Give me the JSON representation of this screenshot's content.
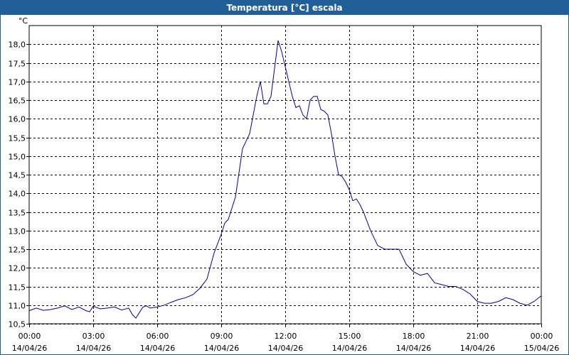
{
  "window": {
    "title": "Temperatura [°C] escala"
  },
  "colors": {
    "titlebar": "#235f97",
    "series": "#0000a0",
    "grid": "#000000"
  },
  "chart_data": {
    "type": "line",
    "title": "Temperatura [°C] escala",
    "ylabel": "°C",
    "xlabel": "",
    "ylim": [
      10.5,
      18.5
    ],
    "yticks": [
      "10,5",
      "11,0",
      "11,5",
      "12,0",
      "12,5",
      "13,0",
      "13,5",
      "14,0",
      "14,5",
      "15,0",
      "15,5",
      "16,0",
      "16,5",
      "17,0",
      "17,5",
      "18,0"
    ],
    "xticks": [
      {
        "time": "00:00",
        "date": "14/04/26"
      },
      {
        "time": "03:00",
        "date": "14/04/26"
      },
      {
        "time": "06:00",
        "date": "14/04/26"
      },
      {
        "time": "09:00",
        "date": "14/04/26"
      },
      {
        "time": "12:00",
        "date": "14/04/26"
      },
      {
        "time": "15:00",
        "date": "14/04/26"
      },
      {
        "time": "18:00",
        "date": "14/04/26"
      },
      {
        "time": "21:00",
        "date": "14/04/26"
      },
      {
        "time": "00:00",
        "date": "15/04/26"
      }
    ],
    "grid": true,
    "series": [
      {
        "x": [
          "00:00",
          "00:20",
          "00:40",
          "01:00",
          "01:20",
          "01:40",
          "02:00",
          "02:20",
          "02:40",
          "02:50",
          "03:00",
          "03:20",
          "03:40",
          "04:00",
          "04:20",
          "04:40",
          "04:50",
          "05:00",
          "05:10",
          "05:20",
          "05:30",
          "05:40",
          "06:00",
          "06:20",
          "06:40",
          "07:00",
          "07:20",
          "07:40",
          "08:00",
          "08:20",
          "08:40",
          "09:00",
          "09:10",
          "09:20",
          "09:40",
          "10:00",
          "10:10",
          "10:20",
          "10:40",
          "10:50",
          "11:00",
          "11:10",
          "11:20",
          "11:40",
          "11:50",
          "12:00",
          "12:10",
          "12:20",
          "12:30",
          "12:40",
          "12:50",
          "13:00",
          "13:10",
          "13:20",
          "13:30",
          "13:40",
          "13:50",
          "14:00",
          "14:10",
          "14:20",
          "14:30",
          "14:40",
          "14:50",
          "15:00",
          "15:10",
          "15:20",
          "15:30",
          "15:40",
          "16:00",
          "16:20",
          "16:40",
          "17:00",
          "17:20",
          "17:40",
          "18:00",
          "18:20",
          "18:40",
          "19:00",
          "19:20",
          "19:40",
          "20:00",
          "20:20",
          "20:40",
          "21:00",
          "21:20",
          "21:40",
          "22:00",
          "22:20",
          "22:40",
          "23:00",
          "23:20",
          "23:40",
          "24:00"
        ],
        "values": [
          10.85,
          10.92,
          10.86,
          10.88,
          10.92,
          10.98,
          10.88,
          10.95,
          10.85,
          10.82,
          10.97,
          10.9,
          10.92,
          10.95,
          10.87,
          10.92,
          10.75,
          10.65,
          10.8,
          10.95,
          10.98,
          10.92,
          10.95,
          11.0,
          11.08,
          11.15,
          11.2,
          11.28,
          11.45,
          11.7,
          12.4,
          12.9,
          13.2,
          13.3,
          13.9,
          15.2,
          15.4,
          15.6,
          16.6,
          17.0,
          16.4,
          16.4,
          16.6,
          18.1,
          17.8,
          17.4,
          17.0,
          16.6,
          16.3,
          16.35,
          16.1,
          16.0,
          16.5,
          16.6,
          16.6,
          16.25,
          16.2,
          16.1,
          15.6,
          15.0,
          14.5,
          14.45,
          14.3,
          14.1,
          13.8,
          13.85,
          13.7,
          13.5,
          13.0,
          12.6,
          12.5,
          12.5,
          12.5,
          12.1,
          11.9,
          11.8,
          11.85,
          11.6,
          11.55,
          11.5,
          11.5,
          11.42,
          11.3,
          11.1,
          11.05,
          11.05,
          11.1,
          11.2,
          11.15,
          11.05,
          11.0,
          11.1,
          11.25
        ]
      }
    ]
  }
}
